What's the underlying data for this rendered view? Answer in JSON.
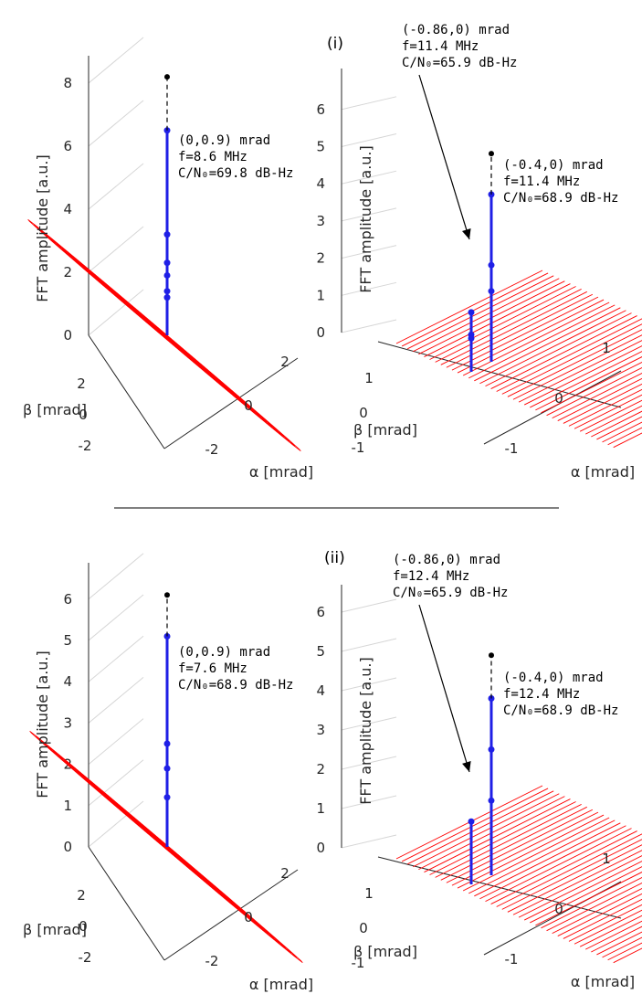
{
  "figure": {
    "section_labels": [
      "(i)",
      "(ii)"
    ],
    "divider": true
  },
  "colors": {
    "grid": "#d6d6d6",
    "axis": "#262626",
    "mesh": "#ff0000",
    "stem": "#1f1fe6",
    "peak": "#000000"
  },
  "chart_data": [
    {
      "type": "stem3d",
      "panel": "i-left",
      "zlabel": "FFT amplitude [a.u.]",
      "xlabel": "α [mrad]",
      "ylabel": "β [mrad]",
      "zticks": [
        "0",
        "2",
        "4",
        "6",
        "8"
      ],
      "zlim": [
        0,
        8
      ],
      "aticks": [
        "-2",
        "0",
        "2"
      ],
      "bticks": [
        "-2",
        "0",
        "2"
      ],
      "aperture": "circle",
      "stems": [
        {
          "alpha": 0,
          "beta": 0.9,
          "peak": 8.2,
          "values": [
            1.2,
            1.4,
            1.9,
            2.3,
            3.2,
            6.5
          ],
          "dashed_to_peak": true
        }
      ],
      "annotation": {
        "lines": [
          "(0,0.9) mrad",
          "f=8.6 MHz",
          "C/N₀=69.8 dB-Hz"
        ]
      }
    },
    {
      "type": "stem3d",
      "panel": "i-right",
      "zlabel": "FFT amplitude [a.u.]",
      "xlabel": "α [mrad]",
      "ylabel": "β [mrad]",
      "zticks": [
        "0",
        "1",
        "2",
        "3",
        "4",
        "5",
        "6"
      ],
      "zlim": [
        0,
        6
      ],
      "aticks": [
        "-1",
        "0",
        "1"
      ],
      "bticks": [
        "-1",
        "0",
        "1"
      ],
      "aperture": "square",
      "stems": [
        {
          "alpha": -0.86,
          "beta": 0,
          "peak": 1.6,
          "values": [
            0.9,
            1.0,
            1.6
          ],
          "dashed_to_peak": false
        },
        {
          "alpha": -0.4,
          "beta": 0,
          "peak": 5.6,
          "values": [
            1.9,
            2.6,
            4.5
          ],
          "dashed_to_peak": true
        }
      ],
      "annotations": [
        {
          "lines": [
            "(-0.86,0) mrad",
            "f=11.4 MHz",
            "C/N₀=65.9 dB-Hz"
          ]
        },
        {
          "lines": [
            "(-0.4,0) mrad",
            "f=11.4 MHz",
            "C/N₀=68.9 dB-Hz"
          ]
        }
      ]
    },
    {
      "type": "stem3d",
      "panel": "ii-left",
      "zlabel": "FFT amplitude [a.u.]",
      "xlabel": "α [mrad]",
      "ylabel": "β [mrad]",
      "zticks": [
        "0",
        "1",
        "2",
        "3",
        "4",
        "5",
        "6"
      ],
      "zlim": [
        0,
        6
      ],
      "aticks": [
        "-2",
        "0",
        "2"
      ],
      "bticks": [
        "-2",
        "0",
        "2"
      ],
      "aperture": "circle",
      "stems": [
        {
          "alpha": 0,
          "beta": 0.9,
          "peak": 6.1,
          "values": [
            1.2,
            1.9,
            2.5,
            5.1
          ],
          "dashed_to_peak": true
        }
      ],
      "annotation": {
        "lines": [
          "(0,0.9) mrad",
          "f=7.6 MHz",
          "C/N₀=68.9 dB-Hz"
        ]
      }
    },
    {
      "type": "stem3d",
      "panel": "ii-right",
      "zlabel": "FFT amplitude [a.u.]",
      "xlabel": "α [mrad]",
      "ylabel": "β [mrad]",
      "zticks": [
        "0",
        "1",
        "2",
        "3",
        "4",
        "5",
        "6"
      ],
      "zlim": [
        0,
        6
      ],
      "aticks": [
        "-1",
        "0",
        "1"
      ],
      "bticks": [
        "-1",
        "0",
        "1"
      ],
      "aperture": "square",
      "stems": [
        {
          "alpha": -0.86,
          "beta": 0,
          "peak": 1.6,
          "values": [
            1.6
          ],
          "dashed_to_peak": false
        },
        {
          "alpha": -0.4,
          "beta": 0,
          "peak": 5.6,
          "values": [
            1.9,
            3.2,
            4.5
          ],
          "dashed_to_peak": true
        }
      ],
      "annotations": [
        {
          "lines": [
            "(-0.86,0) mrad",
            "f=12.4 MHz",
            "C/N₀=65.9 dB-Hz"
          ]
        },
        {
          "lines": [
            "(-0.4,0) mrad",
            "f=12.4 MHz",
            "C/N₀=68.9 dB-Hz"
          ]
        }
      ]
    }
  ]
}
